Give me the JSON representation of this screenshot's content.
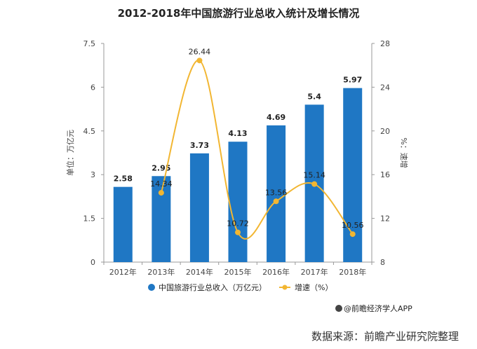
{
  "chart_data": {
    "type": "bar",
    "title": "2012-2018年中国旅游行业总收入统计及增长情况",
    "categories": [
      "2012年",
      "2013年",
      "2014年",
      "2015年",
      "2016年",
      "2017年",
      "2018年"
    ],
    "series": [
      {
        "name": "中国旅游行业总收入（万亿元）",
        "type": "bar",
        "axis": "left",
        "values": [
          2.58,
          2.95,
          3.73,
          4.13,
          4.69,
          5.4,
          5.97
        ]
      },
      {
        "name": "增速（%）",
        "type": "line",
        "axis": "right",
        "values": [
          null,
          14.34,
          26.44,
          10.72,
          13.56,
          15.14,
          10.56
        ]
      }
    ],
    "ylabel_left": "单位：万亿元",
    "ylabel_right": "%：速增",
    "ylim_left": [
      0,
      7.5
    ],
    "yticks_left": [
      "0",
      "1.5",
      "3",
      "4.5",
      "6",
      "7.5"
    ],
    "ylim_right": [
      8,
      28
    ],
    "yticks_right": [
      "8",
      "12",
      "16",
      "20",
      "24",
      "28"
    ],
    "grid": false,
    "legend_position": "bottom",
    "colors": {
      "bar": "#1f77c4",
      "line": "#f2b632"
    }
  },
  "credit": "@前瞻经济学人APP",
  "source": "数据来源：前瞻产业研究院整理"
}
